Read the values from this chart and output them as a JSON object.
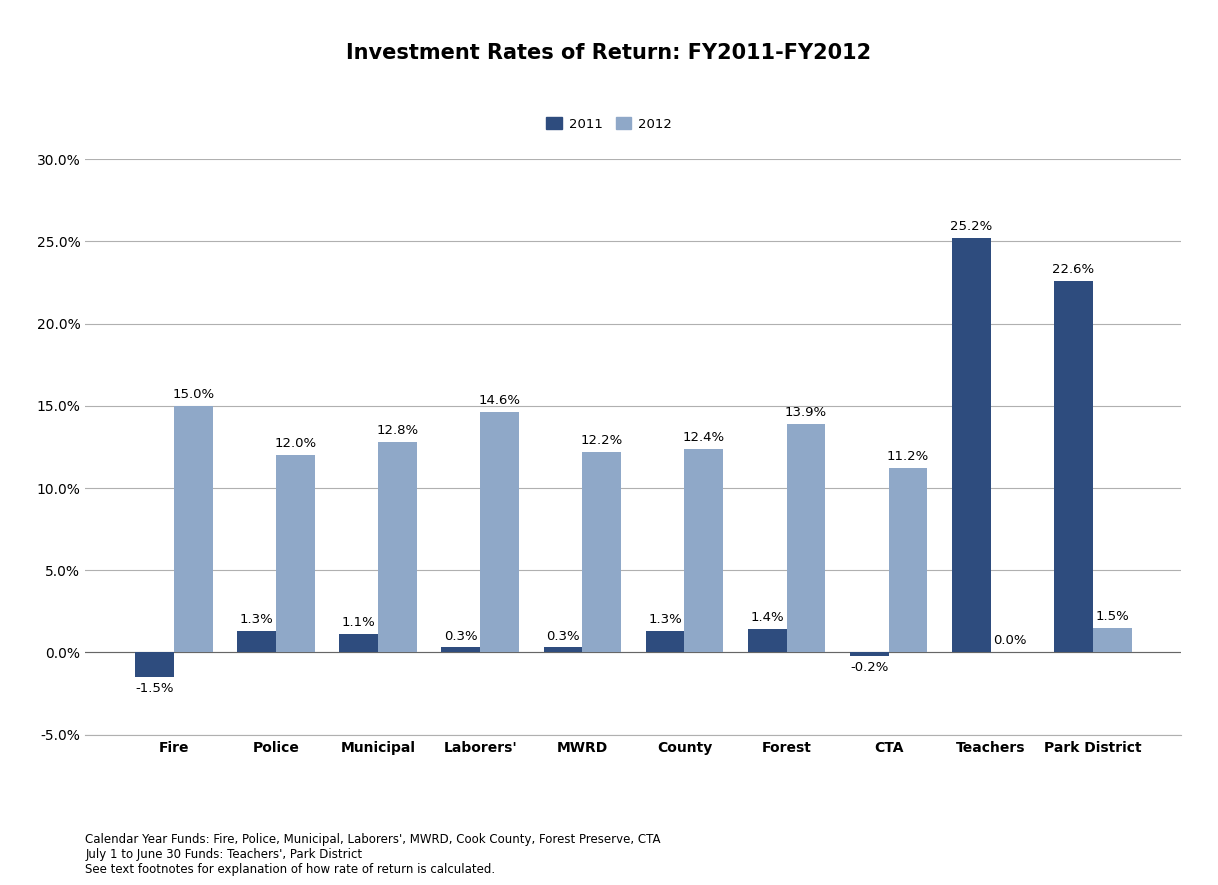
{
  "title": "Investment Rates of Return: FY2011-FY2012",
  "categories": [
    "Fire",
    "Police",
    "Municipal",
    "Laborers'",
    "MWRD",
    "County",
    "Forest",
    "CTA",
    "Teachers",
    "Park District"
  ],
  "values_2011": [
    -1.5,
    1.3,
    1.1,
    0.3,
    0.3,
    1.3,
    1.4,
    -0.2,
    25.2,
    22.6
  ],
  "values_2012": [
    15.0,
    12.0,
    12.8,
    14.6,
    12.2,
    12.4,
    13.9,
    11.2,
    0.0,
    1.5
  ],
  "color_2011": "#2E4C7E",
  "color_2012": "#8FA8C8",
  "ylim": [
    -5.0,
    30.0
  ],
  "yticks": [
    -5.0,
    0.0,
    5.0,
    10.0,
    15.0,
    20.0,
    25.0,
    30.0
  ],
  "legend_2011": "2011",
  "legend_2012": "2012",
  "footnote1": "Calendar Year Funds: Fire, Police, Municipal, Laborers', MWRD, Cook County, Forest Preserve, CTA",
  "footnote2": "July 1 to June 30 Funds: Teachers', Park District",
  "footnote3": "See text footnotes for explanation of how rate of return is calculated.",
  "background_color": "#FFFFFF",
  "grid_color": "#B0B0B0",
  "title_fontsize": 15,
  "label_fontsize": 9.5,
  "tick_fontsize": 10,
  "footnote_fontsize": 8.5,
  "bar_width": 0.38
}
